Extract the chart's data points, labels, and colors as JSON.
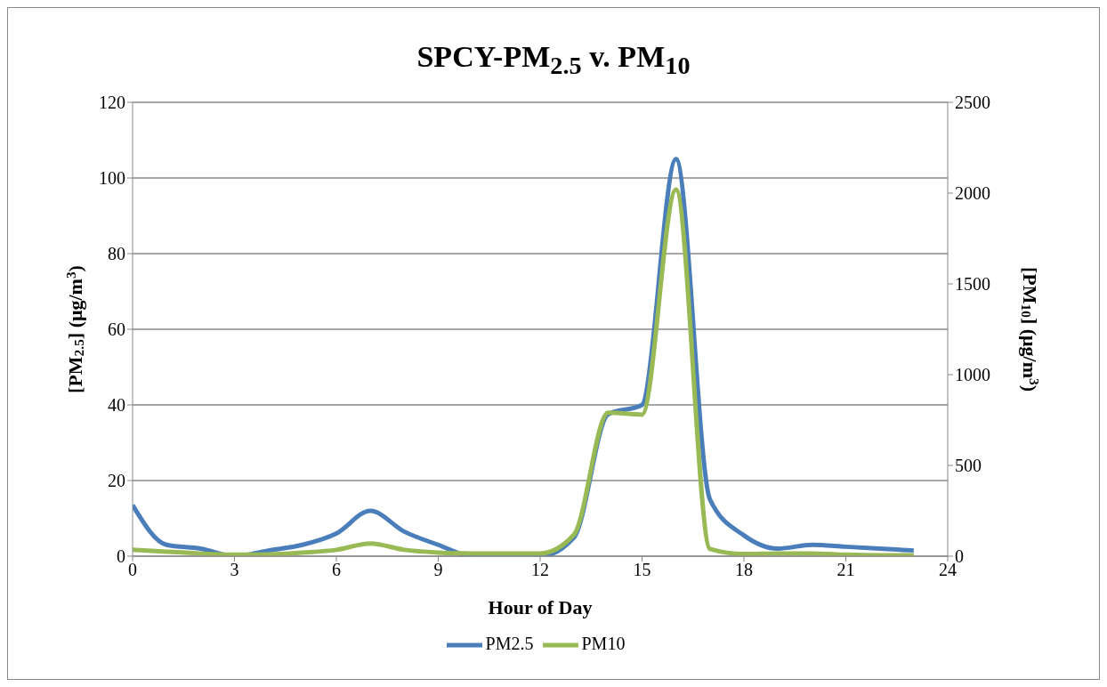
{
  "chart_data": {
    "type": "line",
    "title": "SPCY-PM$_{2.5}$ v. PM$_{10}$",
    "xlabel": "Hour of Day",
    "ylabel": "[PM$_{2.5}$] (μg/m$^{3}$)",
    "y2label": "[PM$_{10}$] (μg/m$^{3}$)",
    "x": [
      0,
      1,
      2,
      3,
      4,
      5,
      6,
      7,
      8,
      9,
      10,
      11,
      12,
      13,
      14,
      15,
      16,
      17,
      18,
      19,
      20,
      21,
      22,
      23
    ],
    "series": [
      {
        "name": "PM2.5",
        "color": "#4a7ebb",
        "values": [
          13.5,
          3,
          2,
          0,
          1.5,
          3,
          6,
          12,
          6.5,
          3,
          0,
          0,
          0,
          5,
          37.5,
          40,
          105,
          15,
          5.5,
          2,
          3,
          2.5,
          2,
          1.5
        ]
      },
      {
        "name": "PM10",
        "color": "#98b954",
        "axis": "y2",
        "values": [
          35,
          25,
          15,
          8,
          10,
          20,
          35,
          70,
          35,
          20,
          15,
          15,
          15,
          120,
          790,
          780,
          2020,
          40,
          12,
          15,
          15,
          8,
          5,
          5
        ]
      }
    ],
    "xlim": [
      0,
      24
    ],
    "xticks": [
      0,
      3,
      6,
      9,
      12,
      15,
      18,
      21,
      24
    ],
    "ylim": [
      0,
      120
    ],
    "yticks": [
      0,
      20,
      40,
      60,
      80,
      100,
      120
    ],
    "y2lim": [
      0,
      2500
    ],
    "y2ticks": [
      0,
      500,
      1000,
      1500,
      2000,
      2500
    ],
    "grid": "y",
    "legend": "bottom",
    "marker": "none",
    "line_style": "solid"
  }
}
